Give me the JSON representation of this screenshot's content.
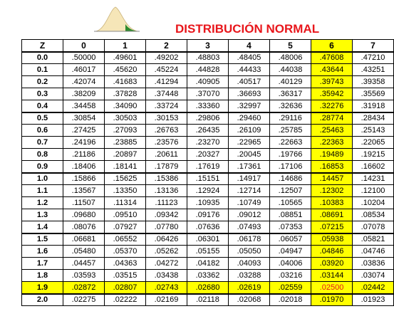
{
  "header": {
    "title": "DISTRIBUCIÓN NORMAL"
  },
  "table": {
    "columns": [
      "Z",
      "0",
      "1",
      "2",
      "3",
      "4",
      "5",
      "6",
      "7"
    ],
    "rows": [
      [
        "0.0",
        ".50000",
        ".49601",
        ".49202",
        ".48803",
        ".48405",
        ".48006",
        ".47608",
        ".47210"
      ],
      [
        "0.1",
        ".46017",
        ".45620",
        ".45224",
        ".44828",
        ".44433",
        ".44038",
        ".43644",
        ".43251"
      ],
      [
        "0.2",
        ".42074",
        ".41683",
        ".41294",
        ".40905",
        ".40517",
        ".40129",
        ".39743",
        ".39358"
      ],
      [
        "0.3",
        ".38209",
        ".37828",
        ".37448",
        ".37070",
        ".36693",
        ".36317",
        ".35942",
        ".35569"
      ],
      [
        "0.4",
        ".34458",
        ".34090",
        ".33724",
        ".33360",
        ".32997",
        ".32636",
        ".32276",
        ".31918"
      ],
      [
        "0.5",
        ".30854",
        ".30503",
        ".30153",
        ".29806",
        ".29460",
        ".29116",
        ".28774",
        ".28434"
      ],
      [
        "0.6",
        ".27425",
        ".27093",
        ".26763",
        ".26435",
        ".26109",
        ".25785",
        ".25463",
        ".25143"
      ],
      [
        "0.7",
        ".24196",
        ".23885",
        ".23576",
        ".23270",
        ".22965",
        ".22663",
        ".22363",
        ".22065"
      ],
      [
        "0.8",
        ".21186",
        ".20897",
        ".20611",
        ".20327",
        ".20045",
        ".19766",
        ".19489",
        ".19215"
      ],
      [
        "0.9",
        ".18406",
        ".18141",
        ".17879",
        ".17619",
        ".17361",
        ".17106",
        ".16853",
        ".16602"
      ],
      [
        "1.0",
        ".15866",
        ".15625",
        ".15386",
        ".15151",
        ".14917",
        ".14686",
        ".14457",
        ".14231"
      ],
      [
        "1.1",
        ".13567",
        ".13350",
        ".13136",
        ".12924",
        ".12714",
        ".12507",
        ".12302",
        ".12100"
      ],
      [
        "1.2",
        ".11507",
        ".11314",
        ".11123",
        ".10935",
        ".10749",
        ".10565",
        ".10383",
        ".10204"
      ],
      [
        "1.3",
        ".09680",
        ".09510",
        ".09342",
        ".09176",
        ".09012",
        ".08851",
        ".08691",
        ".08534"
      ],
      [
        "1.4",
        ".08076",
        ".07927",
        ".07780",
        ".07636",
        ".07493",
        ".07353",
        ".07215",
        ".07078"
      ],
      [
        "1.5",
        ".06681",
        ".06552",
        ".06426",
        ".06301",
        ".06178",
        ".06057",
        ".05938",
        ".05821"
      ],
      [
        "1.6",
        ".05480",
        ".05370",
        ".05262",
        ".05155",
        ".05050",
        ".04947",
        ".04846",
        ".04746"
      ],
      [
        "1.7",
        ".04457",
        ".04363",
        ".04272",
        ".04182",
        ".04093",
        ".04006",
        ".03920",
        ".03836"
      ],
      [
        "1.8",
        ".03593",
        ".03515",
        ".03438",
        ".03362",
        ".03288",
        ".03216",
        ".03144",
        ".03074"
      ],
      [
        "1.9",
        ".02872",
        ".02807",
        ".02743",
        ".02680",
        ".02619",
        ".02559",
        ".02500",
        ".02442"
      ],
      [
        "2.0",
        ".02275",
        ".02222",
        ".02169",
        ".02118",
        ".02068",
        ".02018",
        ".01970",
        ".01923"
      ]
    ]
  }
}
